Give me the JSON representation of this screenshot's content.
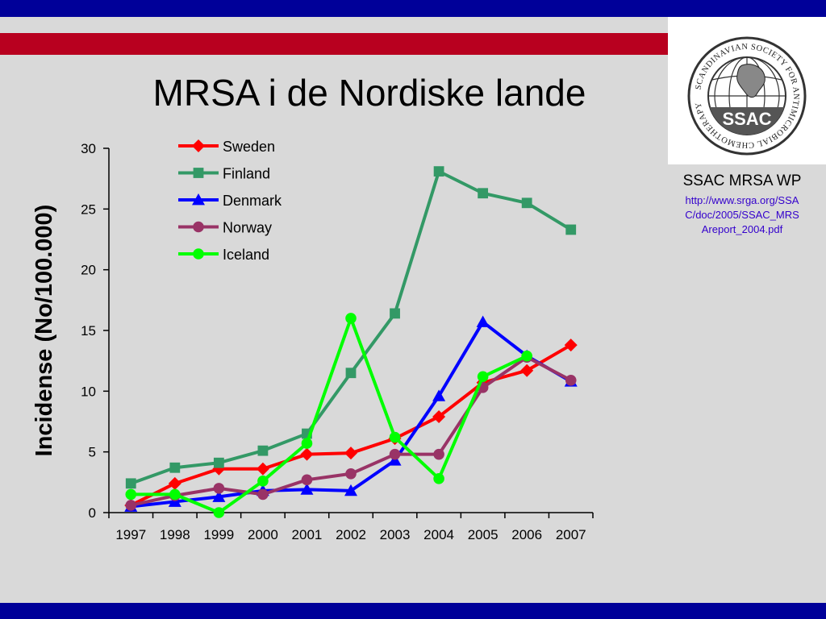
{
  "slide": {
    "title": "MRSA i de Nordiske lande",
    "logo_text": "SSAC",
    "logo_ring_text": "SCANDINAVIAN SOCIETY FOR ANTIMICROBIAL CHEMOTHERAPY",
    "source_title": "SSAC MRSA WP",
    "source_link_lines": [
      "http://www.srga.org/SSA",
      "C/doc/2005/SSAC_MRS",
      "Areport_2004.pdf"
    ]
  },
  "colors": {
    "band": "#000099",
    "stripe": "#b8001f",
    "background": "#d9d9d9"
  },
  "chart_data": {
    "type": "line",
    "title": "",
    "xlabel": "",
    "ylabel": "Incidense (No/100.000)",
    "ylim": [
      0,
      30
    ],
    "yticks": [
      0,
      5,
      10,
      15,
      20,
      25,
      30
    ],
    "grid": false,
    "legend": "top-left",
    "categories": [
      "1997",
      "1998",
      "1999",
      "2000",
      "2001",
      "2002",
      "2003",
      "2004",
      "2005",
      "2006",
      "2007"
    ],
    "series": [
      {
        "name": "Sweden",
        "color": "#ff0000",
        "marker": "diamond",
        "values": [
          0.6,
          2.4,
          3.6,
          3.6,
          4.8,
          4.9,
          6.1,
          7.9,
          10.7,
          11.7,
          13.8
        ]
      },
      {
        "name": "Finland",
        "color": "#339966",
        "marker": "square",
        "values": [
          2.4,
          3.7,
          4.1,
          5.1,
          6.5,
          11.5,
          16.4,
          28.1,
          26.3,
          25.5,
          23.3
        ]
      },
      {
        "name": "Denmark",
        "color": "#0000ff",
        "marker": "triangle",
        "values": [
          0.5,
          0.9,
          1.3,
          1.8,
          1.9,
          1.8,
          4.3,
          9.6,
          15.7,
          12.9,
          10.8
        ]
      },
      {
        "name": "Norway",
        "color": "#993366",
        "marker": "circle",
        "values": [
          0.6,
          1.4,
          2.0,
          1.5,
          2.7,
          3.2,
          4.8,
          4.8,
          10.3,
          12.8,
          10.9
        ]
      },
      {
        "name": "Iceland",
        "color": "#00ff00",
        "marker": "circle",
        "values": [
          1.5,
          1.5,
          0.0,
          2.6,
          5.7,
          16.0,
          6.2,
          2.8,
          11.2,
          12.9,
          null
        ]
      }
    ]
  }
}
